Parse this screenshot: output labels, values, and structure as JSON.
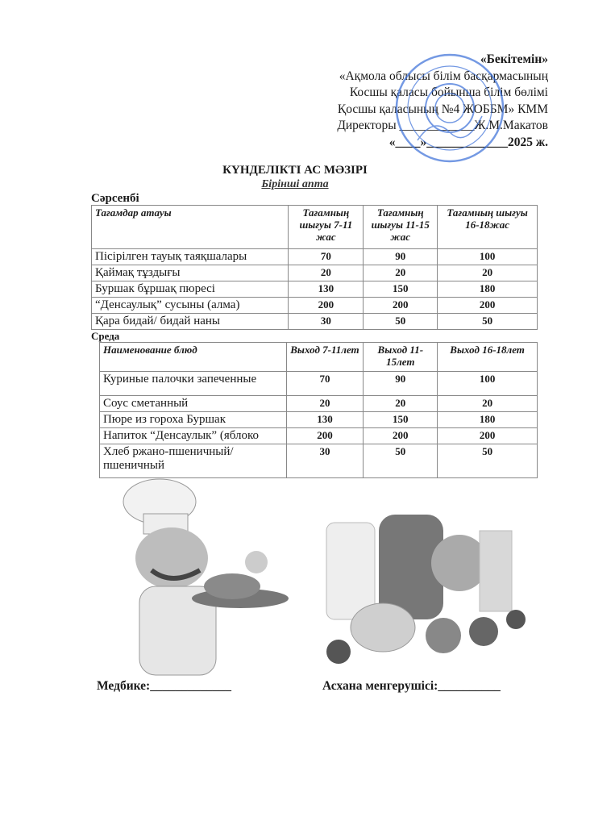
{
  "approval": {
    "heading": "«Бекітемін»",
    "line1": "«Ақмола облысы білім басқармасының",
    "line2": "Косшы қаласы бойынша білім бөлімі",
    "line3": "Қосшы қаласының №4 ЖОББМ» КММ",
    "director_label": "Директоры ____________Ж.М.Макатов",
    "date": "«____»_____________2025 ж.",
    "stamp_color": "#3a6fd8"
  },
  "title": "КҮНДЕЛІКТІ АС МӘЗІРІ",
  "subtitle": "Бірінші  апта",
  "kz_table": {
    "day": "Сәрсенбі",
    "headers": [
      "Тағамдар атауы",
      "Тағамның шығуы 7-11 жас",
      "Тағамның шығуы 11-15 жас",
      "Тағамның шығуы 16-18жас"
    ],
    "rows": [
      [
        "Пісірілген тауық таяқшалары",
        "70",
        "90",
        "100"
      ],
      [
        "Қаймақ тұздығы",
        "20",
        "20",
        "20"
      ],
      [
        "Буршак бұршақ пюресі",
        "130",
        "150",
        "180"
      ],
      [
        "“Денсаулық” сусыны (алма)",
        "200",
        "200",
        "200"
      ],
      [
        "Қара бидай/ бидай наны",
        "30",
        "50",
        "50"
      ]
    ]
  },
  "ru_table": {
    "day": "Среда",
    "headers": [
      "Наименование блюд",
      "Выход 7-11лет",
      "Выход 11-15лет",
      "Выход 16-18лет"
    ],
    "rows": [
      [
        "Куриные палочки запеченные",
        "70",
        "90",
        "100"
      ],
      [
        "Соус сметанный",
        "20",
        "20",
        "20"
      ],
      [
        "Пюре из гороха Буршак",
        "130",
        "150",
        "180"
      ],
      [
        "Напиток “Денсаулык” (яблоко",
        "200",
        "200",
        "200"
      ],
      [
        "Хлеб ржано-пшеничный/ пшеничный",
        "30",
        "50",
        "50"
      ]
    ]
  },
  "signatures": {
    "nurse": "Медбике:_____________",
    "kitchen": "Асхана менгерушісі:__________"
  }
}
